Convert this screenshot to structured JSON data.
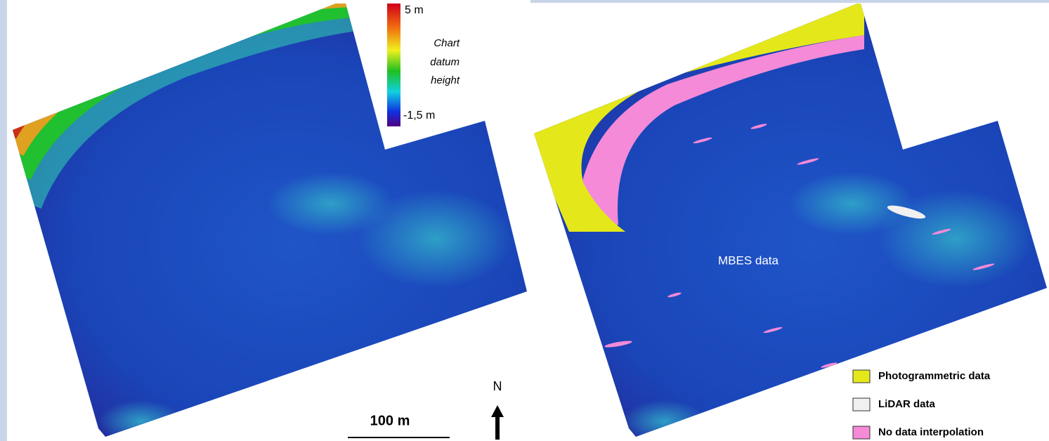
{
  "colorbar": {
    "max_label": "5 m",
    "title_lines": [
      "Chart",
      "datum",
      "height"
    ],
    "min_label": "-1,5 m"
  },
  "scale_bar": {
    "label": "100 m"
  },
  "north": {
    "label": "N"
  },
  "annotation": "MBES data",
  "legend": {
    "items": [
      {
        "label": "Photogrammetric data",
        "color": "#e4e81a"
      },
      {
        "label": "LiDAR data",
        "color": "#f0f0f0"
      },
      {
        "label": "No data interpolation",
        "color": "#f58ad8"
      }
    ]
  }
}
